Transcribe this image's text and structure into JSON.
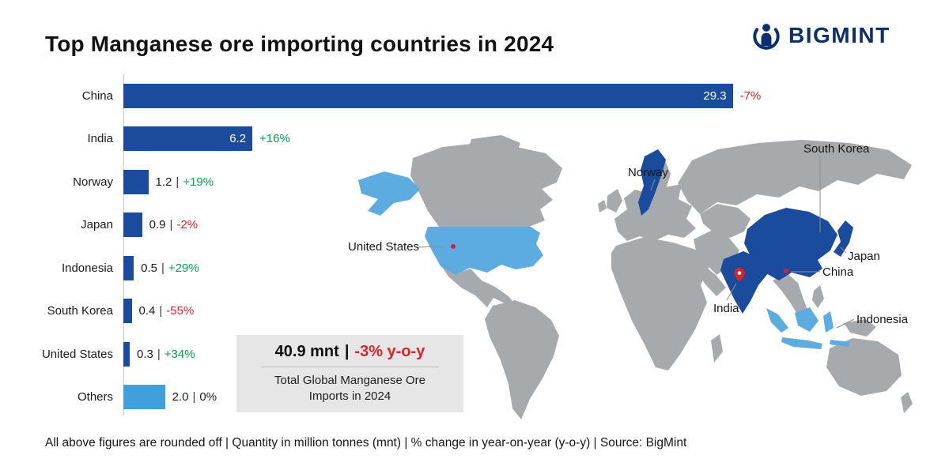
{
  "header": {
    "title": "Top Manganese ore importing countries in 2024",
    "brand": "BIGMINT"
  },
  "chart_data": {
    "type": "bar",
    "orientation": "horizontal",
    "title": "Top Manganese ore importing countries in 2024",
    "unit": "million tonnes (mnt)",
    "xlim": [
      0,
      31
    ],
    "separator": "|",
    "categories": [
      "China",
      "India",
      "Norway",
      "Japan",
      "Indonesia",
      "South Korea",
      "United States",
      "Others"
    ],
    "values": [
      29.3,
      6.2,
      1.2,
      0.9,
      0.5,
      0.4,
      0.3,
      2.0
    ],
    "yoy_change": [
      "-7%",
      "+16%",
      "+19%",
      "-2%",
      "+29%",
      "-55%",
      "+34%",
      "0%"
    ],
    "bars": [
      {
        "country": "China",
        "value": 29.3,
        "value_label": "29.3",
        "yoy": "-7%",
        "trend": "down",
        "value_inside": true,
        "color": "navy"
      },
      {
        "country": "India",
        "value": 6.2,
        "value_label": "6.2",
        "yoy": "+16%",
        "trend": "up",
        "value_inside": true,
        "color": "navy"
      },
      {
        "country": "Norway",
        "value": 1.2,
        "value_label": "1.2",
        "yoy": "+19%",
        "trend": "up",
        "value_inside": false,
        "color": "navy"
      },
      {
        "country": "Japan",
        "value": 0.9,
        "value_label": "0.9",
        "yoy": "-2%",
        "trend": "down",
        "value_inside": false,
        "color": "navy"
      },
      {
        "country": "Indonesia",
        "value": 0.5,
        "value_label": "0.5",
        "yoy": "+29%",
        "trend": "up",
        "value_inside": false,
        "color": "navy"
      },
      {
        "country": "South Korea",
        "value": 0.4,
        "value_label": "0.4",
        "yoy": "-55%",
        "trend": "down",
        "value_inside": false,
        "color": "navy"
      },
      {
        "country": "United States",
        "value": 0.3,
        "value_label": "0.3",
        "yoy": "+34%",
        "trend": "up",
        "value_inside": false,
        "color": "navy"
      },
      {
        "country": "Others",
        "value": 2.0,
        "value_label": "2.0",
        "yoy": "0%",
        "trend": "flat",
        "value_inside": false,
        "color": "light_blue"
      }
    ]
  },
  "summary_box": {
    "value": "40.9 mnt",
    "separator": "|",
    "change": "-3% y-o-y",
    "caption": "Total Global Manganese Ore Imports in 2024"
  },
  "map": {
    "labels": [
      "United States",
      "Norway",
      "South Korea",
      "Japan",
      "China",
      "India",
      "Indonesia"
    ]
  },
  "footer": {
    "note": "All above figures are rounded off | Quantity in million tonnes (mnt) | % change in year-on-year (y-o-y) | Source: BigMint"
  },
  "colors": {
    "navy": "#1a4b9d",
    "light_blue": "#3fa0dc",
    "map_blue": "#5cace2",
    "map_gray": "#a7aaac",
    "positive": "#00a24f",
    "negative": "#d9232a",
    "neutral": "#1a1a1a",
    "brand_navy": "#0d2f6d",
    "box_gray": "#e6e6e6"
  }
}
